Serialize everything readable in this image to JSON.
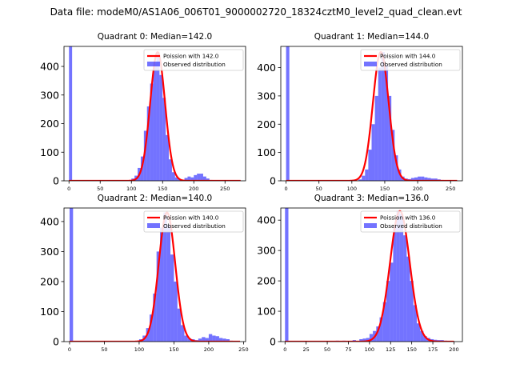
{
  "suptitle": "Data file: modeM0/AS1A06_006T01_9000002720_18324cztM0_level2_quad_clean.evt",
  "colors": {
    "hist": "#0000ff",
    "curve": "#ff0000",
    "axis": "#000000"
  },
  "chart_data": [
    {
      "type": "bar",
      "title": "Quadrant 0: Median=142.0",
      "median": 142.0,
      "xlim": [
        -8,
        283
      ],
      "ylim": [
        0,
        470
      ],
      "xticks": [
        0,
        50,
        100,
        150,
        200,
        250
      ],
      "yticks": [
        0,
        100,
        200,
        300,
        400
      ],
      "legend": [
        "Poission with 142.0",
        "Observed distribution"
      ],
      "legend_loc": "upper right",
      "bin_width": 5,
      "spike": {
        "x": 0,
        "width": 5,
        "height": 470
      },
      "hist_x": [
        100,
        105,
        110,
        115,
        120,
        125,
        130,
        135,
        140,
        145,
        150,
        155,
        160,
        165,
        170,
        175,
        180,
        185,
        190,
        195,
        200,
        205,
        210,
        215,
        220,
        225
      ],
      "hist_y": [
        8,
        18,
        45,
        85,
        175,
        260,
        340,
        410,
        450,
        370,
        290,
        160,
        75,
        30,
        12,
        5,
        3,
        10,
        15,
        12,
        20,
        25,
        25,
        15,
        8,
        3
      ],
      "curve_range": [
        0,
        275
      ]
    },
    {
      "type": "bar",
      "title": "Quadrant 1: Median=144.0",
      "median": 144.0,
      "xlim": [
        -8,
        268
      ],
      "ylim": [
        0,
        475
      ],
      "xticks": [
        0,
        50,
        100,
        150,
        200,
        250
      ],
      "yticks": [
        0,
        100,
        200,
        300,
        400
      ],
      "legend": [
        "Poission with 144.0",
        "Observed distribution"
      ],
      "legend_loc": "upper right",
      "bin_width": 5,
      "spike": {
        "x": 0,
        "width": 5,
        "height": 475
      },
      "hist_x": [
        110,
        115,
        120,
        125,
        130,
        135,
        140,
        145,
        150,
        155,
        160,
        165,
        170,
        175,
        180,
        185,
        190,
        195,
        200,
        205,
        210,
        215,
        220,
        225,
        230,
        235
      ],
      "hist_y": [
        5,
        18,
        40,
        110,
        200,
        300,
        400,
        455,
        410,
        300,
        180,
        90,
        40,
        15,
        8,
        6,
        10,
        12,
        15,
        15,
        12,
        10,
        8,
        8,
        5,
        3
      ],
      "curve_range": [
        0,
        260
      ]
    },
    {
      "type": "bar",
      "title": "Quadrant 2: Median=140.0",
      "median": 140.0,
      "xlim": [
        -8,
        253
      ],
      "ylim": [
        0,
        445
      ],
      "xticks": [
        0,
        50,
        100,
        150,
        200,
        250
      ],
      "yticks": [
        0,
        100,
        200,
        300,
        400
      ],
      "legend": [
        "Poission with 140.0",
        "Observed distribution"
      ],
      "legend_loc": "upper right",
      "bin_width": 5,
      "spike": {
        "x": 0,
        "width": 5,
        "height": 445
      },
      "hist_x": [
        100,
        105,
        110,
        115,
        120,
        125,
        130,
        135,
        140,
        145,
        150,
        155,
        160,
        165,
        170,
        175,
        180,
        185,
        190,
        195,
        200,
        205,
        210,
        215,
        220,
        225,
        230
      ],
      "hist_y": [
        8,
        20,
        45,
        90,
        160,
        300,
        380,
        430,
        390,
        290,
        200,
        110,
        55,
        20,
        10,
        8,
        5,
        10,
        15,
        12,
        25,
        20,
        18,
        12,
        10,
        8,
        3
      ],
      "curve_range": [
        0,
        245
      ]
    },
    {
      "type": "bar",
      "title": "Quadrant 3: Median=136.0",
      "median": 136.0,
      "xlim": [
        -5,
        210
      ],
      "ylim": [
        0,
        440
      ],
      "xticks": [
        0,
        25,
        50,
        75,
        100,
        125,
        150,
        175,
        200
      ],
      "yticks": [
        0,
        100,
        200,
        300,
        400
      ],
      "legend": [
        "Poission with 136.0",
        "Observed distribution"
      ],
      "legend_loc": "upper right",
      "bin_width": 4,
      "spike": {
        "x": 0,
        "width": 4,
        "height": 440
      },
      "hist_x": [
        60,
        68,
        80,
        88,
        92,
        96,
        100,
        104,
        108,
        112,
        116,
        120,
        124,
        128,
        132,
        136,
        140,
        144,
        148,
        152,
        156,
        160,
        164,
        168,
        172,
        176,
        180,
        184,
        188
      ],
      "hist_y": [
        3,
        3,
        5,
        8,
        10,
        12,
        25,
        35,
        50,
        80,
        130,
        200,
        260,
        380,
        430,
        420,
        350,
        280,
        200,
        120,
        60,
        35,
        18,
        12,
        8,
        6,
        5,
        5,
        3
      ],
      "curve_range": [
        0,
        200
      ]
    }
  ]
}
